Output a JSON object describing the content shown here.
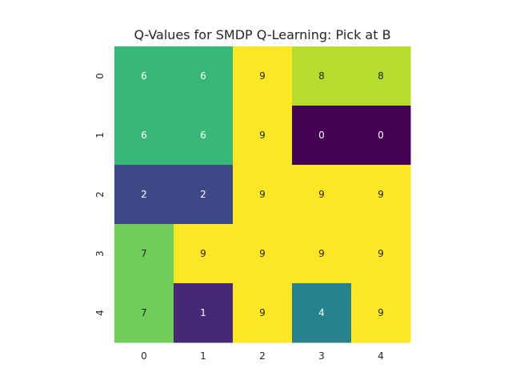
{
  "chart_data": {
    "type": "heatmap",
    "title": "Q-Values for SMDP Q-Learning: Pick at B",
    "x_ticks": [
      "0",
      "1",
      "2",
      "3",
      "4"
    ],
    "y_ticks": [
      "0",
      "1",
      "2",
      "3",
      "4"
    ],
    "values": [
      [
        6,
        6,
        9,
        8,
        8
      ],
      [
        6,
        6,
        9,
        0,
        0
      ],
      [
        2,
        2,
        9,
        9,
        9
      ],
      [
        7,
        9,
        9,
        9,
        9
      ],
      [
        7,
        1,
        9,
        4,
        9
      ]
    ],
    "colormap": "viridis",
    "vmin": 0,
    "vmax": 9,
    "annotated": true,
    "colorbar": false
  }
}
